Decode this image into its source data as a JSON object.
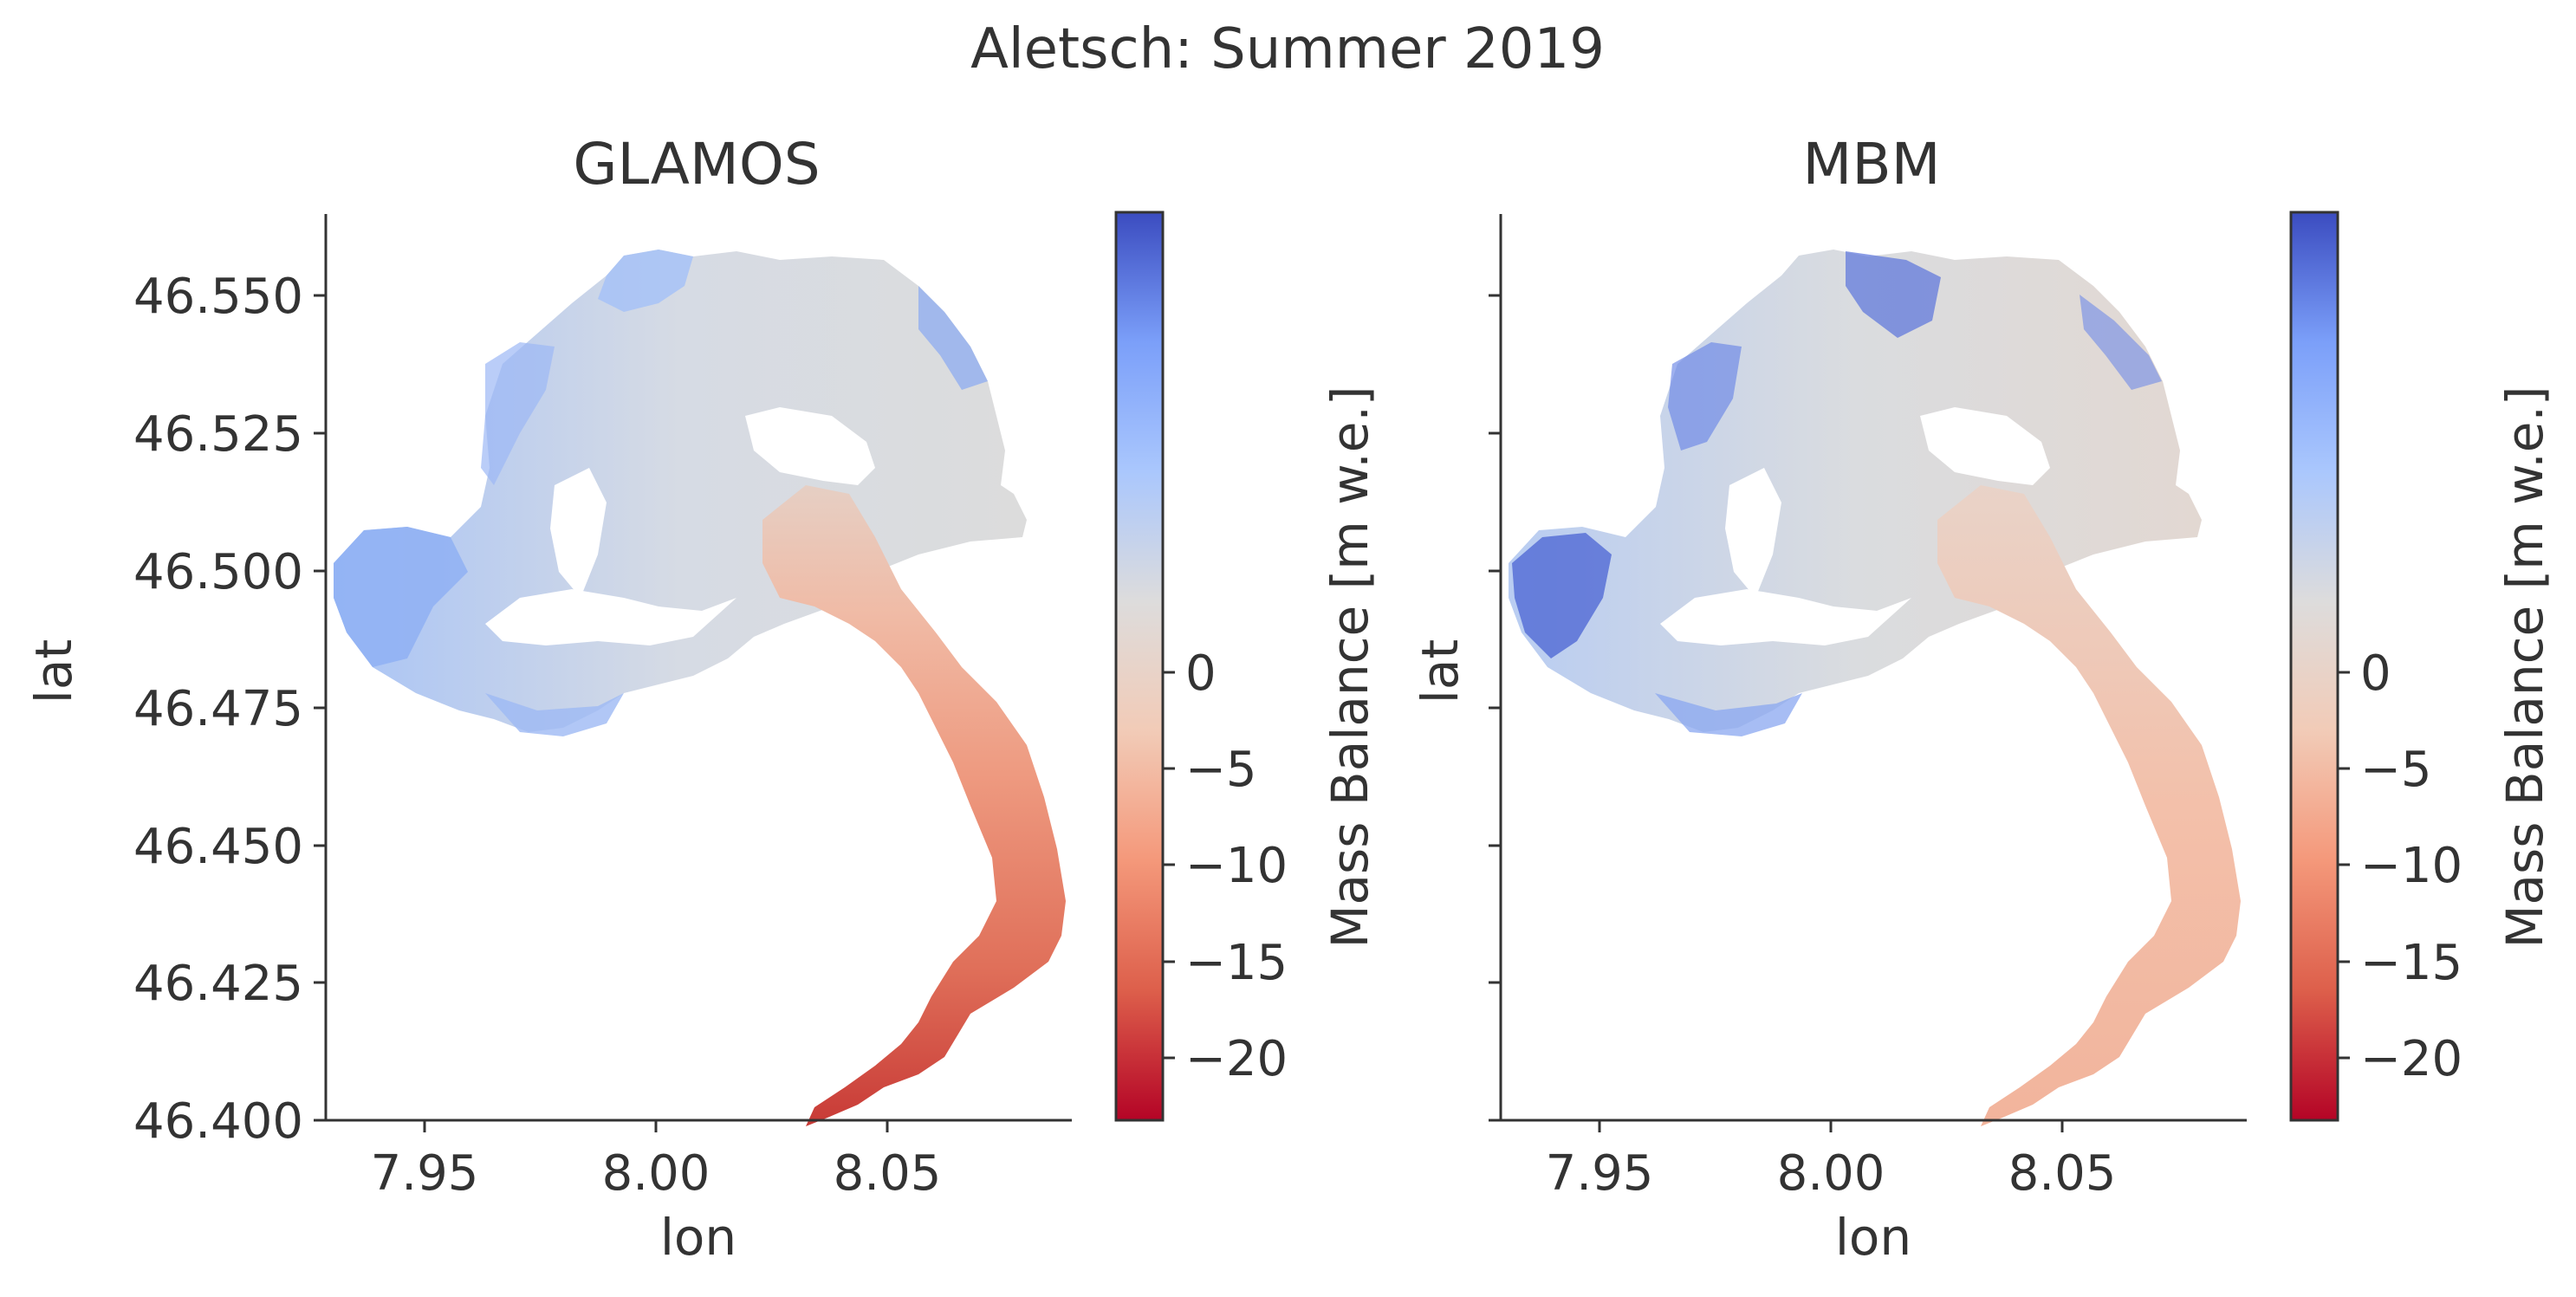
{
  "figure": {
    "suptitle": "Aletsch: Summer 2019"
  },
  "colormap": {
    "name": "coolwarm",
    "stops": [
      "#b40426",
      "#dd5f4b",
      "#f4987a",
      "#f2cbb7",
      "#dddcdc",
      "#aac7fd",
      "#7b9ff9",
      "#3b4cc0"
    ]
  },
  "chart_data": [
    {
      "type": "heatmap",
      "title": "GLAMOS",
      "xlabel": "lon",
      "ylabel": "lat",
      "xlim": [
        7.93,
        8.088
      ],
      "ylim": [
        46.4,
        46.565
      ],
      "xticks": [
        7.95,
        8.0,
        8.05
      ],
      "xtick_labels": [
        "7.95",
        "8.00",
        "8.05"
      ],
      "yticks": [
        46.4,
        46.425,
        46.45,
        46.475,
        46.5,
        46.525,
        46.55
      ],
      "ytick_labels": [
        "46.400",
        "46.425",
        "46.450",
        "46.475",
        "46.500",
        "46.525",
        "46.550"
      ],
      "colorbar": {
        "label": "Mass Balance [m w.e.]",
        "range": [
          -23,
          24
        ],
        "ticks": [
          0,
          -5,
          -10,
          -15,
          -20
        ],
        "tick_labels": [
          "0",
          "−5",
          "−10",
          "−15",
          "−20"
        ]
      },
      "value_summary": {
        "accumulation_basins_max": 5,
        "junction_area": 0,
        "mid_tongue": -6,
        "terminus": -18
      },
      "grid": false
    },
    {
      "type": "heatmap",
      "title": "MBM",
      "xlabel": "lon",
      "ylabel": "lat",
      "xlim": [
        7.93,
        8.088
      ],
      "ylim": [
        46.4,
        46.565
      ],
      "xticks": [
        7.95,
        8.0,
        8.05
      ],
      "xtick_labels": [
        "7.95",
        "8.00",
        "8.05"
      ],
      "yticks": [
        46.4,
        46.425,
        46.45,
        46.475,
        46.5,
        46.525,
        46.55
      ],
      "ytick_labels": [],
      "colorbar": {
        "label": "Mass Balance [m w.e.]",
        "range": [
          -23,
          24
        ],
        "ticks": [
          0,
          -5,
          -10,
          -15,
          -20
        ],
        "tick_labels": [
          "0",
          "−5",
          "−10",
          "−15",
          "−20"
        ]
      },
      "value_summary": {
        "accumulation_basins_max": 9,
        "junction_area": -2,
        "mid_tongue": -4,
        "terminus": -5
      },
      "grid": false
    }
  ]
}
